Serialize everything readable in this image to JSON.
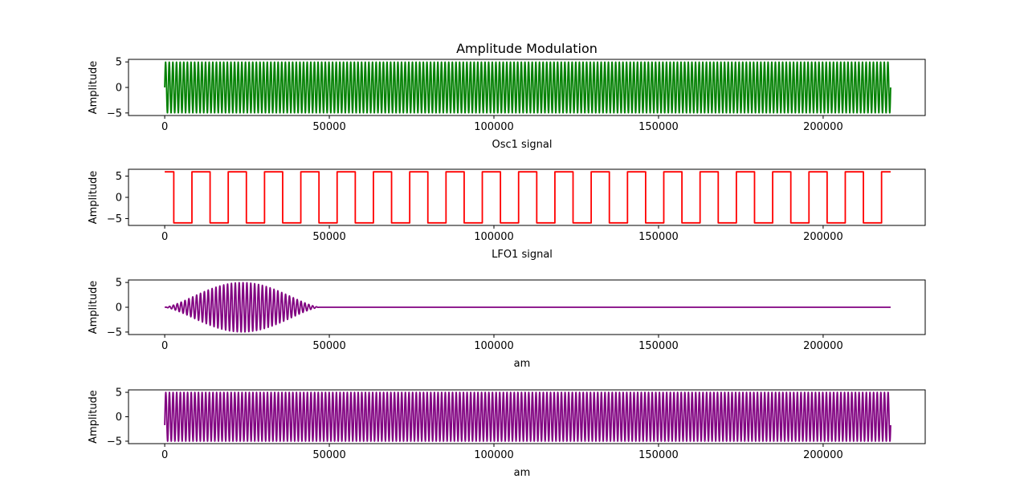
{
  "figure": {
    "title": "Amplitude Modulation"
  },
  "chart_data": [
    {
      "type": "line",
      "name": "osc1",
      "xlabel": "Osc1 signal",
      "ylabel": "Amplitude",
      "xlim": [
        -11000,
        231000
      ],
      "ylim": [
        -5.5,
        5.5
      ],
      "xticks": [
        0,
        50000,
        100000,
        150000,
        200000
      ],
      "yticks": [
        -5,
        0,
        5
      ],
      "grid": false,
      "color": "#008000",
      "signal": {
        "kind": "sine",
        "amplitude": 5,
        "cycles": 200,
        "x_start": 0,
        "x_end": 220500
      }
    },
    {
      "type": "line",
      "name": "lfo1",
      "xlabel": "LFO1 signal",
      "ylabel": "Amplitude",
      "xlim": [
        -11000,
        231000
      ],
      "ylim": [
        -6.6,
        6.6
      ],
      "xticks": [
        0,
        50000,
        100000,
        150000,
        200000
      ],
      "yticks": [
        -5,
        0,
        5
      ],
      "grid": false,
      "color": "#ff0000",
      "signal": {
        "kind": "square",
        "amplitude": 6,
        "cycles": 20,
        "x_start": 0,
        "x_end": 220500
      }
    },
    {
      "type": "line",
      "name": "am1",
      "xlabel": "am",
      "ylabel": "Amplitude",
      "xlim": [
        -11000,
        231000
      ],
      "ylim": [
        -5.5,
        5.5
      ],
      "xticks": [
        0,
        50000,
        100000,
        150000,
        200000
      ],
      "yticks": [
        -5,
        0,
        5
      ],
      "grid": false,
      "color": "#800080",
      "signal": {
        "kind": "burst",
        "amplitude": 5,
        "carrier_cycles": 40,
        "x_start": 0,
        "x_end": 220500,
        "burst_end": 47000,
        "burst_peak": 20000
      }
    },
    {
      "type": "line",
      "name": "am2",
      "xlabel": "am",
      "ylabel": "Amplitude",
      "xlim": [
        -11000,
        231000
      ],
      "ylim": [
        -5.5,
        5.5
      ],
      "xticks": [
        0,
        50000,
        100000,
        150000,
        200000
      ],
      "yticks": [
        -5,
        0,
        5
      ],
      "grid": false,
      "color": "#800080",
      "signal": {
        "kind": "sine",
        "amplitude": 5,
        "cycles": 200,
        "phase": -0.35,
        "x_start": 0,
        "x_end": 220500
      }
    }
  ]
}
